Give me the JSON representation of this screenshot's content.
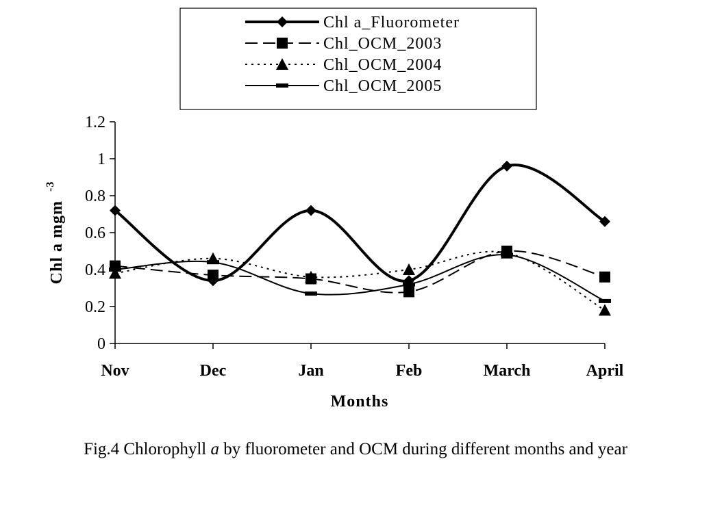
{
  "chart_data": {
    "type": "line",
    "categories": [
      "Nov",
      "Dec",
      "Jan",
      "Feb",
      "March",
      "April"
    ],
    "xlabel": "Months",
    "ylabel_main": "Chl a mgm",
    "ylabel_sup": "-3",
    "ylim": [
      0,
      1.2
    ],
    "yticks": [
      0,
      0.2,
      0.4,
      0.6,
      0.8,
      1,
      1.2
    ],
    "ytick_labels": [
      "0",
      "0.2",
      "0.4",
      "0.6",
      "0.8",
      "1",
      "1.2"
    ],
    "grid": false,
    "legend_position": "top",
    "series": [
      {
        "name": "Chl a_Fluorometer",
        "values": [
          0.72,
          0.34,
          0.72,
          0.34,
          0.96,
          0.66
        ],
        "marker": "diamond",
        "dash": "solid",
        "stroke_width": 4
      },
      {
        "name": "Chl_OCM_2003",
        "values": [
          0.42,
          0.37,
          0.35,
          0.28,
          0.5,
          0.36
        ],
        "marker": "square",
        "dash": "long",
        "stroke_width": 2
      },
      {
        "name": "Chl_OCM_2004",
        "values": [
          0.38,
          0.46,
          0.36,
          0.4,
          0.49,
          0.18
        ],
        "marker": "triangle",
        "dash": "dotted",
        "stroke_width": 2
      },
      {
        "name": "Chl_OCM_2005",
        "values": [
          0.4,
          0.44,
          0.27,
          0.32,
          0.48,
          0.23
        ],
        "marker": "dash",
        "dash": "solid",
        "stroke_width": 2
      }
    ]
  },
  "caption": {
    "prefix": "Fig.4  Chlorophyll ",
    "italic": "a",
    "suffix": " by fluorometer and OCM during different months and year"
  }
}
